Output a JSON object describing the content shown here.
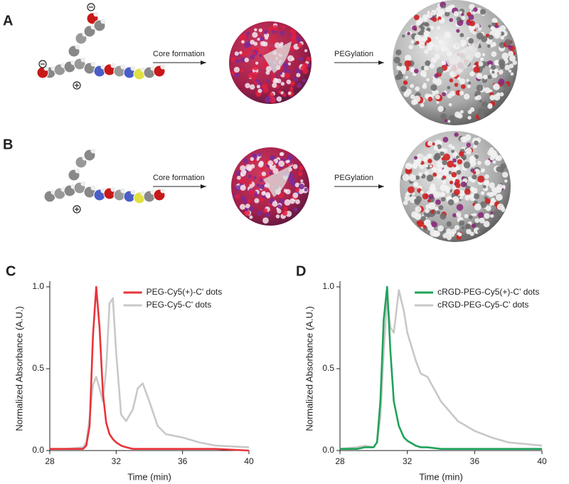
{
  "rows": [
    {
      "label": "A",
      "step1": "Core formation",
      "step2": "PEGylation"
    },
    {
      "label": "B",
      "step1": "Core formation",
      "step2": "PEGylation"
    }
  ],
  "chart_data": [
    {
      "type": "line",
      "panel_label": "C",
      "x_label": "Time (min)",
      "y_label": "Normalized Absorbance (A.U.)",
      "x": [
        28,
        29,
        30,
        30.2,
        30.4,
        30.6,
        30.8,
        31,
        31.2,
        31.4,
        31.6,
        31.8,
        32,
        32.3,
        32.6,
        33,
        33.3,
        33.6,
        34,
        34.5,
        35,
        36,
        37,
        38,
        40
      ],
      "series": [
        {
          "name": "PEG-Cy5(+)-C' dots",
          "color": "#e8343a",
          "values": [
            0.01,
            0.01,
            0.01,
            0.03,
            0.15,
            0.7,
            1.0,
            0.75,
            0.35,
            0.17,
            0.1,
            0.07,
            0.05,
            0.03,
            0.02,
            0.01,
            0.01,
            0.01,
            0.01,
            0.01,
            0.01,
            0.01,
            0.01,
            0.01,
            0.0
          ]
        },
        {
          "name": "PEG-Cy5-C' dots",
          "color": "#c8c8c8",
          "values": [
            0.01,
            0.01,
            0.02,
            0.05,
            0.2,
            0.4,
            0.45,
            0.38,
            0.3,
            0.5,
            0.9,
            0.93,
            0.6,
            0.22,
            0.18,
            0.25,
            0.38,
            0.41,
            0.3,
            0.15,
            0.1,
            0.08,
            0.05,
            0.03,
            0.02
          ]
        }
      ],
      "xlim": [
        28,
        40
      ],
      "ylim": [
        0,
        1
      ],
      "xticks": [
        28,
        32,
        36,
        40
      ],
      "yticks": [
        {
          "value": 0,
          "label": "0.0"
        },
        {
          "value": 0.5,
          "label": "0.5"
        },
        {
          "value": 1,
          "label": "1.0"
        }
      ],
      "legend": "upper right"
    },
    {
      "type": "line",
      "panel_label": "D",
      "x_label": "Time (min)",
      "y_label": "Normalized Absorbance (A.U.)",
      "x": [
        28,
        29,
        29.5,
        30,
        30.2,
        30.4,
        30.6,
        30.8,
        31,
        31.2,
        31.5,
        31.8,
        32,
        32.5,
        32.8,
        33.2,
        34,
        35,
        36,
        37,
        38,
        40
      ],
      "series": [
        {
          "name": "cRGD-PEG-Cy5(+)-C' dots",
          "color": "#1fa35a",
          "values": [
            0.01,
            0.01,
            0.02,
            0.02,
            0.05,
            0.3,
            0.8,
            1.0,
            0.6,
            0.3,
            0.15,
            0.08,
            0.06,
            0.03,
            0.02,
            0.02,
            0.01,
            0.01,
            0.01,
            0.01,
            0.01,
            0.01
          ]
        },
        {
          "name": "cRGD-PEG-Cy5-C' dots",
          "color": "#c8c8c8",
          "values": [
            0.01,
            0.02,
            0.03,
            0.02,
            0.05,
            0.2,
            0.6,
            0.93,
            0.75,
            0.72,
            0.98,
            0.85,
            0.72,
            0.55,
            0.47,
            0.45,
            0.3,
            0.18,
            0.12,
            0.08,
            0.05,
            0.03
          ]
        }
      ],
      "xlim": [
        28,
        40
      ],
      "ylim": [
        0,
        1
      ],
      "xticks": [
        28,
        32,
        36,
        40
      ],
      "yticks": [
        {
          "value": 0,
          "label": "0.0"
        },
        {
          "value": 0.5,
          "label": "0.5"
        },
        {
          "value": 1,
          "label": "1.0"
        }
      ],
      "legend": "upper right"
    }
  ]
}
